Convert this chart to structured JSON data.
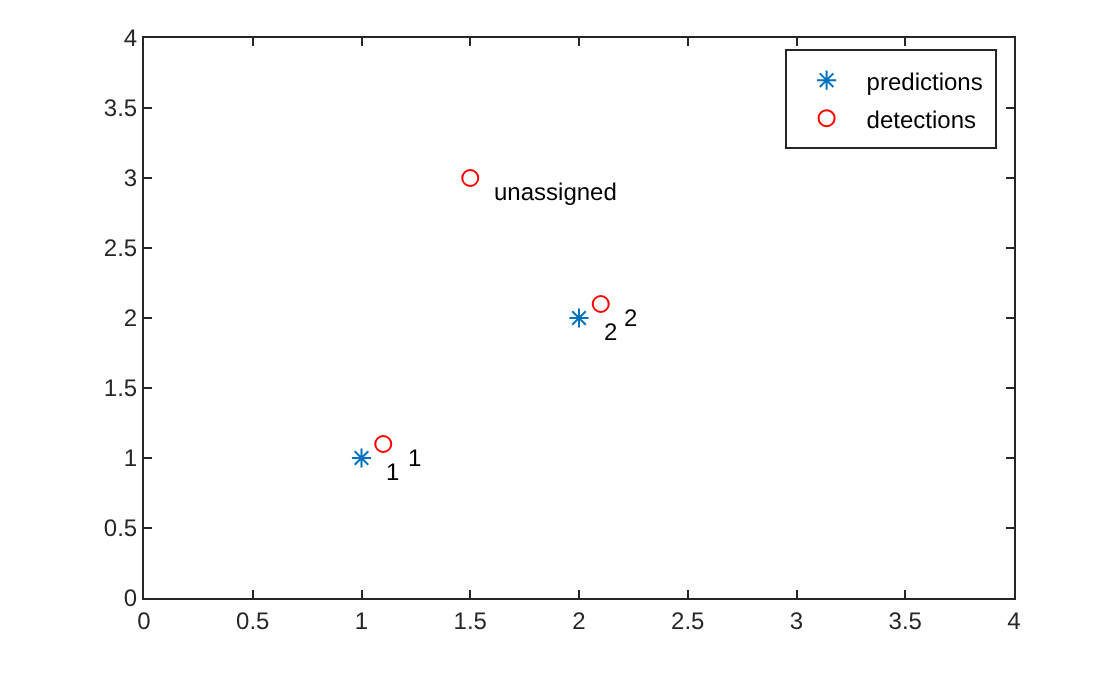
{
  "chart_data": {
    "type": "scatter",
    "series": [
      {
        "name": "predictions",
        "color": "#0072bd",
        "marker": "cross",
        "x": [
          1,
          2
        ],
        "values": [
          1,
          2
        ]
      },
      {
        "name": "detections",
        "color": "#ff0000",
        "marker": "circle",
        "x": [
          1.1,
          2.1,
          1.5
        ],
        "values": [
          1.1,
          2.1,
          3
        ]
      }
    ],
    "annotations": [
      {
        "text": "1",
        "x": 1,
        "y": 1
      },
      {
        "text": "1",
        "x": 1.1,
        "y": 1.1
      },
      {
        "text": "2",
        "x": 2,
        "y": 2
      },
      {
        "text": "2",
        "x": 2.1,
        "y": 2.1
      },
      {
        "text": "unassigned",
        "x": 1.5,
        "y": 3
      }
    ],
    "xlim": [
      0,
      4
    ],
    "xticks": [
      0,
      0.5,
      1,
      1.5,
      2,
      2.5,
      3,
      3.5,
      4
    ],
    "ylim": [
      0,
      4
    ],
    "yticks": [
      0,
      0.5,
      1,
      1.5,
      2,
      2.5,
      3,
      3.5,
      4
    ],
    "grid": false,
    "legend": "top right"
  }
}
